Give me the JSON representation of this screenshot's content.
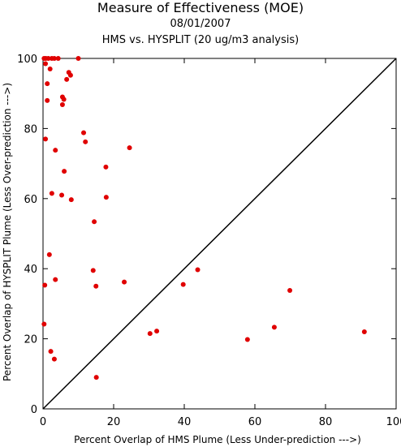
{
  "chart_data": {
    "type": "scatter",
    "title": "Measure of Effectiveness (MOE)",
    "date": "08/01/2007",
    "subtitle": "HMS vs. HYSPLIT  (20 ug/m3 analysis)",
    "xlabel": "Percent Overlap of HMS Plume (Less Under-prediction --->)",
    "ylabel": "Percent Overlap of HYSPLIT Plume (Less Over-prediction --->)",
    "xlim": [
      0,
      100
    ],
    "ylim": [
      0,
      100
    ],
    "xticks": [
      "0",
      "20",
      "40",
      "60",
      "80",
      "100"
    ],
    "yticks": [
      "0",
      "20",
      "40",
      "60",
      "80",
      "100"
    ],
    "reference_line": "y = x",
    "point_color": "#e00000",
    "points": [
      {
        "x": 0.3,
        "y": 100
      },
      {
        "x": 0.8,
        "y": 100
      },
      {
        "x": 1.5,
        "y": 100
      },
      {
        "x": 2.5,
        "y": 100
      },
      {
        "x": 3.2,
        "y": 100
      },
      {
        "x": 4.3,
        "y": 100
      },
      {
        "x": 10.0,
        "y": 100
      },
      {
        "x": 0.7,
        "y": 98.5
      },
      {
        "x": 2.0,
        "y": 97.0
      },
      {
        "x": 7.3,
        "y": 96.0
      },
      {
        "x": 7.8,
        "y": 95.2
      },
      {
        "x": 6.7,
        "y": 94.0
      },
      {
        "x": 1.2,
        "y": 92.8
      },
      {
        "x": 5.5,
        "y": 89.0
      },
      {
        "x": 5.9,
        "y": 88.3
      },
      {
        "x": 1.2,
        "y": 88.0
      },
      {
        "x": 5.5,
        "y": 86.8
      },
      {
        "x": 11.5,
        "y": 78.8
      },
      {
        "x": 12.0,
        "y": 76.2
      },
      {
        "x": 0.7,
        "y": 77.0
      },
      {
        "x": 24.5,
        "y": 74.5
      },
      {
        "x": 3.5,
        "y": 73.8
      },
      {
        "x": 17.8,
        "y": 69.0
      },
      {
        "x": 6.0,
        "y": 67.8
      },
      {
        "x": 2.5,
        "y": 61.5
      },
      {
        "x": 5.3,
        "y": 61.0
      },
      {
        "x": 17.9,
        "y": 60.4
      },
      {
        "x": 8.0,
        "y": 59.7
      },
      {
        "x": 14.5,
        "y": 53.4
      },
      {
        "x": 1.8,
        "y": 44.0
      },
      {
        "x": 14.2,
        "y": 39.5
      },
      {
        "x": 43.8,
        "y": 39.7
      },
      {
        "x": 3.5,
        "y": 36.9
      },
      {
        "x": 23.0,
        "y": 36.2
      },
      {
        "x": 0.5,
        "y": 35.3
      },
      {
        "x": 39.7,
        "y": 35.5
      },
      {
        "x": 15.0,
        "y": 35.0
      },
      {
        "x": 69.9,
        "y": 33.8
      },
      {
        "x": 0.3,
        "y": 24.2
      },
      {
        "x": 65.5,
        "y": 23.3
      },
      {
        "x": 32.2,
        "y": 22.2
      },
      {
        "x": 91.0,
        "y": 22.0
      },
      {
        "x": 30.3,
        "y": 21.5
      },
      {
        "x": 57.9,
        "y": 19.8
      },
      {
        "x": 2.2,
        "y": 16.4
      },
      {
        "x": 3.2,
        "y": 14.2
      },
      {
        "x": 15.1,
        "y": 9.0
      }
    ]
  }
}
